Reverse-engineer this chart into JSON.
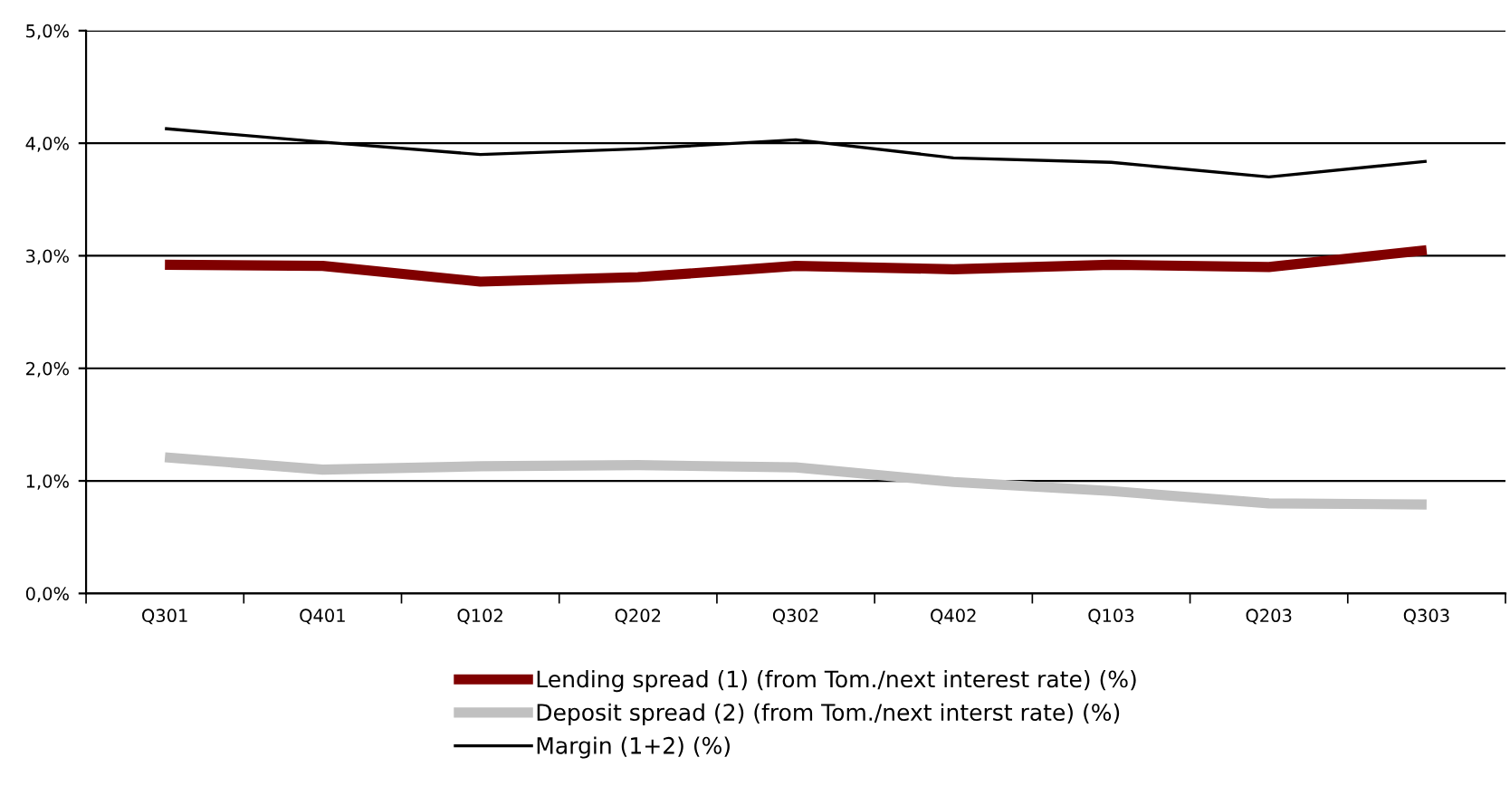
{
  "chart_data": {
    "type": "line",
    "categories": [
      "Q301",
      "Q401",
      "Q102",
      "Q202",
      "Q302",
      "Q402",
      "Q103",
      "Q203",
      "Q303"
    ],
    "series": [
      {
        "name": "Lending spread (1) (from Tom./next interest rate) (%)",
        "color": "#800000",
        "values": [
          2.92,
          2.91,
          2.77,
          2.81,
          2.91,
          2.88,
          2.92,
          2.9,
          3.05
        ]
      },
      {
        "name": "Deposit spread (2) (from Tom./next interst rate) (%)",
        "color": "#c0c0c0",
        "values": [
          1.21,
          1.1,
          1.13,
          1.14,
          1.12,
          0.99,
          0.91,
          0.8,
          0.79
        ]
      },
      {
        "name": "Margin (1+2) (%)",
        "color": "#000000",
        "values": [
          4.13,
          4.01,
          3.9,
          3.95,
          4.03,
          3.87,
          3.83,
          3.7,
          3.84
        ]
      }
    ],
    "ylim": [
      0,
      5
    ],
    "yticks": [
      {
        "value": 0,
        "label": "0,0%"
      },
      {
        "value": 1,
        "label": "1,0%"
      },
      {
        "value": 2,
        "label": "2,0%"
      },
      {
        "value": 3,
        "label": "3,0%"
      },
      {
        "value": 4,
        "label": "4,0%"
      },
      {
        "value": 5,
        "label": "5,0%"
      }
    ],
    "grid": "y",
    "legend": "bottom",
    "marker": "none",
    "line_style": "solid"
  }
}
